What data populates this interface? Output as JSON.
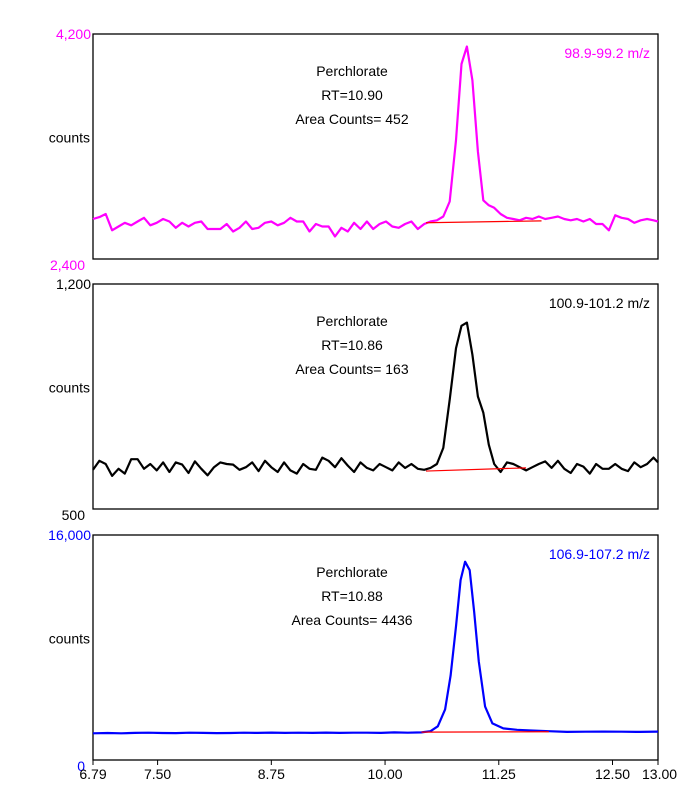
{
  "chart_data": [
    {
      "type": "line",
      "id": "panel1",
      "color": "#ff00ff",
      "ymin_label": "2,400",
      "ymax_label": "4,200",
      "ylim": [
        2400,
        4200
      ],
      "xlim": [
        6.79,
        13.0
      ],
      "ylabel": "counts",
      "mz_label": "98.9-99.2 m/z",
      "annotation": [
        "Perchlorate",
        "RT=10.90",
        "Area Counts= 452"
      ],
      "baseline": {
        "x": [
          10.45,
          11.72
        ],
        "y": [
          2690,
          2705
        ]
      },
      "x": [
        6.79,
        6.86,
        6.93,
        7.0,
        7.07,
        7.14,
        7.21,
        7.28,
        7.35,
        7.42,
        7.49,
        7.56,
        7.63,
        7.7,
        7.77,
        7.84,
        7.91,
        7.98,
        8.05,
        8.12,
        8.19,
        8.26,
        8.33,
        8.4,
        8.47,
        8.54,
        8.61,
        8.68,
        8.75,
        8.82,
        8.89,
        8.96,
        9.03,
        9.1,
        9.17,
        9.24,
        9.31,
        9.38,
        9.45,
        9.52,
        9.59,
        9.66,
        9.73,
        9.8,
        9.87,
        9.94,
        10.01,
        10.08,
        10.15,
        10.22,
        10.29,
        10.36,
        10.43,
        10.5,
        10.57,
        10.64,
        10.71,
        10.78,
        10.84,
        10.9,
        10.96,
        11.02,
        11.08,
        11.14,
        11.2,
        11.27,
        11.34,
        11.41,
        11.48,
        11.55,
        11.62,
        11.69,
        11.76,
        11.83,
        11.9,
        11.97,
        12.04,
        12.11,
        12.18,
        12.25,
        12.32,
        12.39,
        12.46,
        12.53,
        12.6,
        12.67,
        12.74,
        12.81,
        12.88,
        12.95,
        13.0
      ],
      "y": [
        2720,
        2735,
        2760,
        2630,
        2660,
        2690,
        2670,
        2700,
        2730,
        2670,
        2690,
        2720,
        2700,
        2650,
        2690,
        2660,
        2690,
        2700,
        2640,
        2640,
        2640,
        2680,
        2620,
        2650,
        2700,
        2640,
        2650,
        2690,
        2700,
        2670,
        2690,
        2730,
        2700,
        2700,
        2620,
        2680,
        2660,
        2660,
        2580,
        2650,
        2620,
        2690,
        2640,
        2700,
        2640,
        2680,
        2700,
        2660,
        2650,
        2680,
        2700,
        2640,
        2680,
        2700,
        2710,
        2740,
        2860,
        3350,
        3960,
        4100,
        3830,
        3260,
        2870,
        2830,
        2810,
        2760,
        2730,
        2720,
        2710,
        2730,
        2720,
        2740,
        2720,
        2730,
        2740,
        2720,
        2710,
        2720,
        2700,
        2720,
        2680,
        2680,
        2630,
        2750,
        2730,
        2720,
        2690,
        2710,
        2720,
        2710,
        2700
      ]
    },
    {
      "type": "line",
      "id": "panel2",
      "color": "#000000",
      "ymin_label": "500",
      "ymax_label": "1,200",
      "ylim": [
        500,
        1200
      ],
      "xlim": [
        6.79,
        13.0
      ],
      "ylabel": "counts",
      "mz_label": "100.9-101.2 m/z",
      "annotation": [
        "Perchlorate",
        "RT=10.86",
        "Area Counts= 163"
      ],
      "baseline": {
        "x": [
          10.45,
          11.55
        ],
        "y": [
          618,
          628
        ]
      },
      "x": [
        6.79,
        6.86,
        6.93,
        7.0,
        7.07,
        7.14,
        7.21,
        7.28,
        7.35,
        7.42,
        7.49,
        7.56,
        7.63,
        7.7,
        7.77,
        7.84,
        7.91,
        7.98,
        8.05,
        8.12,
        8.19,
        8.26,
        8.33,
        8.4,
        8.47,
        8.54,
        8.61,
        8.68,
        8.75,
        8.82,
        8.89,
        8.96,
        9.03,
        9.1,
        9.17,
        9.24,
        9.31,
        9.38,
        9.45,
        9.52,
        9.59,
        9.66,
        9.73,
        9.8,
        9.87,
        9.94,
        10.01,
        10.08,
        10.15,
        10.22,
        10.29,
        10.36,
        10.43,
        10.5,
        10.57,
        10.64,
        10.71,
        10.78,
        10.84,
        10.9,
        10.96,
        11.02,
        11.08,
        11.14,
        11.2,
        11.27,
        11.34,
        11.41,
        11.48,
        11.55,
        11.62,
        11.69,
        11.76,
        11.83,
        11.9,
        11.97,
        12.04,
        12.11,
        12.18,
        12.25,
        12.32,
        12.39,
        12.46,
        12.53,
        12.6,
        12.67,
        12.74,
        12.81,
        12.88,
        12.95,
        13.0
      ],
      "y": [
        622,
        650,
        640,
        603,
        625,
        610,
        655,
        655,
        625,
        640,
        620,
        645,
        615,
        645,
        638,
        612,
        648,
        625,
        605,
        630,
        645,
        640,
        638,
        622,
        630,
        645,
        618,
        650,
        630,
        615,
        645,
        620,
        610,
        640,
        625,
        622,
        660,
        650,
        630,
        658,
        635,
        615,
        645,
        628,
        620,
        640,
        630,
        620,
        645,
        628,
        640,
        625,
        622,
        628,
        640,
        690,
        840,
        1000,
        1070,
        1080,
        980,
        850,
        800,
        700,
        640,
        615,
        645,
        640,
        630,
        620,
        630,
        640,
        648,
        628,
        650,
        625,
        612,
        640,
        632,
        610,
        640,
        625,
        625,
        640,
        625,
        618,
        645,
        630,
        640,
        660,
        645
      ]
    },
    {
      "type": "line",
      "id": "panel3",
      "color": "#0000ff",
      "ymin_label": "0",
      "ymax_label": "16,000",
      "ylim": [
        0,
        16000
      ],
      "xlim": [
        6.79,
        13.0
      ],
      "ylabel": "counts",
      "mz_label": "106.9-107.2 m/z",
      "annotation": [
        "Perchlorate",
        "RT=10.88",
        "Area Counts= 4436"
      ],
      "baseline": {
        "x": [
          10.4,
          11.8
        ],
        "y": [
          1980,
          2010
        ]
      },
      "x": [
        6.79,
        6.95,
        7.1,
        7.25,
        7.4,
        7.55,
        7.7,
        7.85,
        8.0,
        8.15,
        8.3,
        8.45,
        8.6,
        8.75,
        8.9,
        9.05,
        9.2,
        9.35,
        9.5,
        9.65,
        9.8,
        9.95,
        10.1,
        10.25,
        10.4,
        10.5,
        10.58,
        10.66,
        10.72,
        10.78,
        10.83,
        10.88,
        10.93,
        10.98,
        11.03,
        11.1,
        11.18,
        11.3,
        11.45,
        11.6,
        11.8,
        12.0,
        12.2,
        12.4,
        12.6,
        12.8,
        13.0
      ],
      "y": [
        1900,
        1920,
        1900,
        1930,
        1940,
        1920,
        1910,
        1940,
        1930,
        1910,
        1920,
        1940,
        1930,
        1950,
        1930,
        1940,
        1930,
        1950,
        1930,
        1940,
        1940,
        1930,
        1960,
        1940,
        1960,
        2050,
        2400,
        3600,
        6000,
        9500,
        12800,
        14100,
        13500,
        10500,
        7000,
        3800,
        2600,
        2250,
        2150,
        2100,
        2050,
        2000,
        2010,
        2020,
        2010,
        2000,
        2020
      ]
    }
  ],
  "x_axis": {
    "ticks": [
      {
        "value": 6.79,
        "label": "6.79"
      },
      {
        "value": 7.5,
        "label": "7.50"
      },
      {
        "value": 8.75,
        "label": "8.75"
      },
      {
        "value": 10.0,
        "label": "10.00"
      },
      {
        "value": 11.25,
        "label": "11.25"
      },
      {
        "value": 12.5,
        "label": "12.50"
      },
      {
        "value": 13.0,
        "label": "13.00"
      }
    ]
  }
}
